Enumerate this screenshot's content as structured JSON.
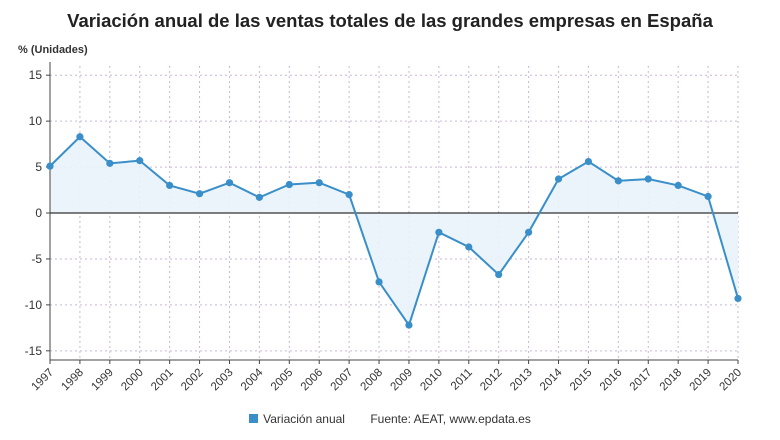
{
  "title": "Variación anual de las ventas totales de las grandes empresas en España",
  "ylabel": "% (Unidades)",
  "source": "Fuente: AEAT, www.epdata.es",
  "colors": {
    "line": "#3a8fc9",
    "fill": "#e9f3fb",
    "grid": "#c9b6d8",
    "zero": "#333333",
    "axis": "#444444"
  },
  "chart_data": {
    "type": "area",
    "title": "Variación anual de las ventas totales de las grandes empresas en España",
    "xlabel": "",
    "ylabel": "% (Unidades)",
    "ylim": [
      -16,
      16
    ],
    "yticks": [
      15,
      10,
      5,
      0,
      -5,
      -10,
      -15
    ],
    "grid": true,
    "legend": "bottom",
    "categories": [
      "1997",
      "1998",
      "1999",
      "2000",
      "2001",
      "2002",
      "2003",
      "2004",
      "2005",
      "2006",
      "2007",
      "2008",
      "2009",
      "2010",
      "2011",
      "2012",
      "2013",
      "2014",
      "2015",
      "2016",
      "2017",
      "2018",
      "2019",
      "2020"
    ],
    "series": [
      {
        "name": "Variación anual",
        "values": [
          5.1,
          8.3,
          5.4,
          5.7,
          3.0,
          2.1,
          3.3,
          1.7,
          3.1,
          3.3,
          2.0,
          -7.5,
          -12.2,
          -2.1,
          -3.7,
          -6.7,
          -2.1,
          3.7,
          5.6,
          3.5,
          3.7,
          3.0,
          1.8,
          -9.3
        ]
      }
    ]
  }
}
